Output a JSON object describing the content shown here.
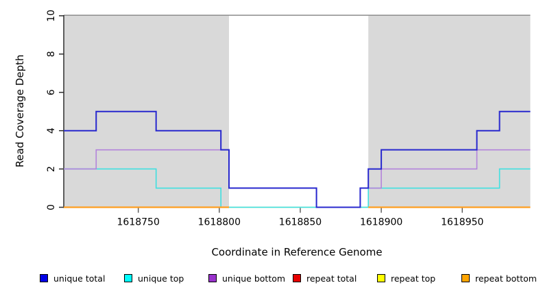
{
  "figure": {
    "xlabel": "Coordinate in Reference Genome",
    "ylabel": "Read Coverage Depth"
  },
  "chart_data": {
    "type": "line",
    "subtype": "step-coverage-plot",
    "title": "",
    "xlabel": "Coordinate in Reference Genome",
    "ylabel": "Read Coverage Depth",
    "xlim": [
      1618704,
      1618992
    ],
    "ylim": [
      0,
      10
    ],
    "x_ticks": [
      "1618750",
      "1618800",
      "1618850",
      "1618900",
      "1618950"
    ],
    "y_ticks": [
      "0",
      "2",
      "4",
      "6",
      "8",
      "10"
    ],
    "grid": false,
    "legend_position": "bottom",
    "plot_background": "#ffffff",
    "shaded_region_color": "#d9d9d9",
    "frame_top_color": "#8c8c8c",
    "shaded_regions": [
      {
        "x_start": 1618704,
        "x_end": 1618806
      },
      {
        "x_start": 1618892,
        "x_end": 1618992
      }
    ],
    "unshaded_gap": {
      "x_start": 1618806,
      "x_end": 1618892
    },
    "series": [
      {
        "name": "unique total",
        "color": "#2727ce",
        "width": 2,
        "z": 3,
        "covered": false,
        "x_end": 1618992,
        "points": [
          [
            1618704,
            4
          ],
          [
            1618724,
            5
          ],
          [
            1618761,
            4
          ],
          [
            1618801,
            3
          ],
          [
            1618806,
            1
          ],
          [
            1618860,
            0
          ],
          [
            1618887,
            1
          ],
          [
            1618892,
            2
          ],
          [
            1618900,
            3
          ],
          [
            1618959,
            4
          ],
          [
            1618973,
            5
          ]
        ]
      },
      {
        "name": "unique top",
        "color": "#3fe0e0",
        "width": 1.6,
        "z": 1,
        "covered": false,
        "x_end": 1618992,
        "points": [
          [
            1618704,
            2
          ],
          [
            1618761,
            1
          ],
          [
            1618801,
            0
          ],
          [
            1618892,
            1
          ],
          [
            1618973,
            2
          ]
        ]
      },
      {
        "name": "unique bottom",
        "color": "#b383db",
        "width": 1.6,
        "z": 2,
        "covered": false,
        "x_end": 1618992,
        "points": [
          [
            1618704,
            2
          ],
          [
            1618724,
            3
          ],
          [
            1618806,
            1
          ],
          [
            1618860,
            0
          ],
          [
            1618887,
            1
          ],
          [
            1618900,
            2
          ],
          [
            1618959,
            3
          ]
        ]
      },
      {
        "name": "repeat total",
        "color": "#e60000",
        "width": 1.6,
        "z": 0,
        "covered": true,
        "x_end": 1618992,
        "points": [
          [
            1618704,
            0
          ]
        ]
      },
      {
        "name": "repeat top",
        "color": "#ffff00",
        "width": 1.6,
        "z": 0,
        "covered": true,
        "x_end": 1618992,
        "points": [
          [
            1618704,
            0
          ]
        ]
      },
      {
        "name": "repeat bottom",
        "color": "#ffa500",
        "width": 2.2,
        "z": 0,
        "covered": true,
        "x_end": 1618992,
        "points": [
          [
            1618704,
            0
          ]
        ]
      }
    ],
    "zero_line_segments": [
      {
        "x_start": 1618806,
        "x_end": 1618892,
        "color": "#8fce8f",
        "width": 1.6,
        "layer": "below"
      },
      {
        "x_start": 1618704,
        "x_end": 1618806,
        "color": "#ff9e20",
        "width": 2.2,
        "layer": "above"
      },
      {
        "x_start": 1618892,
        "x_end": 1618992,
        "color": "#ff9e20",
        "width": 2.2,
        "layer": "above"
      }
    ]
  },
  "legend": {
    "items": [
      {
        "label": "unique total",
        "color": "#0000e6"
      },
      {
        "label": "unique top",
        "color": "#00ffff"
      },
      {
        "label": "unique bottom",
        "color": "#9932cc"
      },
      {
        "label": "repeat total",
        "color": "#e60000"
      },
      {
        "label": "repeat top",
        "color": "#ffff00"
      },
      {
        "label": "repeat bottom",
        "color": "#ffa500"
      }
    ]
  }
}
